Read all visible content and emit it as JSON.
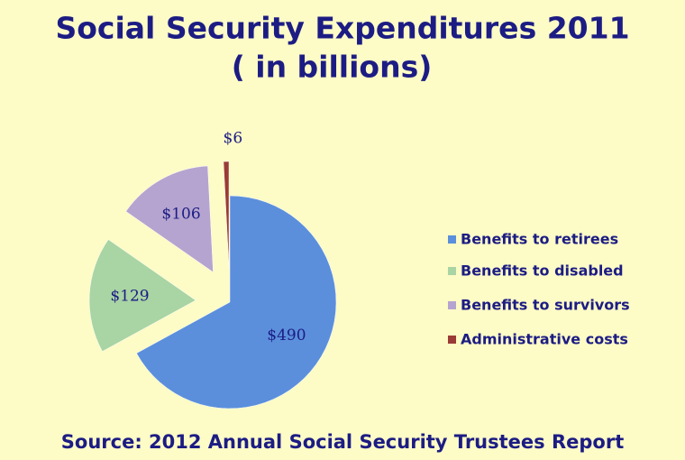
{
  "chart_data": {
    "type": "pie",
    "title": "Social Security Expenditures 2011",
    "subtitle": "( in billions)",
    "source": "Source: 2012 Annual Social Security Trustees Report",
    "categories": [
      "Benefits to retirees",
      "Benefits to disabled",
      "Benefits to survivors",
      "Administrative costs"
    ],
    "values": [
      490,
      129,
      106,
      6
    ],
    "value_labels": [
      "$490",
      "$129",
      "$106",
      "$6"
    ],
    "colors": [
      "#5b8fdc",
      "#a9d4a3",
      "#b5a4cf",
      "#9a3b35"
    ],
    "legend": "right"
  }
}
